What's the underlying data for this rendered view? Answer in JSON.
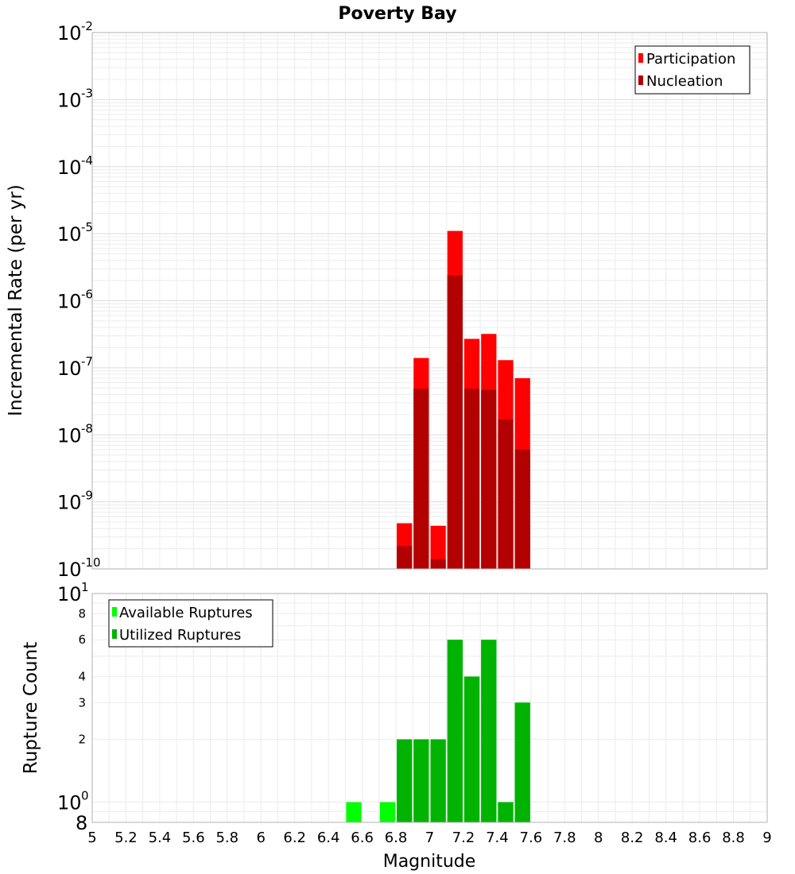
{
  "chart_data": [
    {
      "type": "bar",
      "title": "Poverty Bay",
      "xlabel": "",
      "ylabel": "Incremental Rate (per yr)",
      "xlim": [
        5,
        9
      ],
      "ylim": [
        1e-10,
        0.01
      ],
      "yscale": "log",
      "bin_width": 0.1,
      "grid": true,
      "legend_position": "top-right",
      "x": [
        6.85,
        6.95,
        7.05,
        7.15,
        7.25,
        7.35,
        7.45,
        7.55
      ],
      "series": [
        {
          "name": "Participation",
          "color": "#ff0000",
          "values": [
            4.8e-10,
            1.4e-07,
            4.4e-10,
            1.1e-05,
            2.7e-07,
            3.2e-07,
            1.3e-07,
            7e-08
          ]
        },
        {
          "name": "Nucleation",
          "color": "#b30000",
          "values": [
            2.2e-10,
            4.9e-08,
            1.4e-10,
            2.4e-06,
            4.9e-08,
            4.7e-08,
            1.7e-08,
            6e-09
          ]
        }
      ],
      "y_ticks": [
        {
          "base": "10",
          "exp": "-2"
        },
        {
          "base": "10",
          "exp": "-3"
        },
        {
          "base": "10",
          "exp": "-4"
        },
        {
          "base": "10",
          "exp": "-5"
        },
        {
          "base": "10",
          "exp": "-6"
        },
        {
          "base": "10",
          "exp": "-7"
        },
        {
          "base": "10",
          "exp": "-8"
        },
        {
          "base": "10",
          "exp": "-9"
        },
        {
          "base": "10",
          "exp": "-10"
        }
      ]
    },
    {
      "type": "bar",
      "title": "",
      "xlabel": "Magnitude",
      "ylabel": "Rupture Count",
      "xlim": [
        5,
        9
      ],
      "ylim": [
        0.8,
        10
      ],
      "yscale": "log",
      "bin_width": 0.1,
      "grid": true,
      "legend_position": "top-left",
      "x": [
        6.55,
        6.75,
        6.85,
        6.95,
        7.05,
        7.15,
        7.25,
        7.35,
        7.45,
        7.55
      ],
      "series": [
        {
          "name": "Available Ruptures",
          "color": "#00ff00",
          "values": [
            1,
            1,
            2,
            2,
            2,
            6,
            4,
            6,
            1,
            3
          ]
        },
        {
          "name": "Utilized Ruptures",
          "color": "#00b300",
          "values": [
            0,
            0,
            2,
            2,
            2,
            6,
            4,
            6,
            1,
            3
          ]
        }
      ],
      "y_ticks_major": [
        {
          "value": 10,
          "base": "10",
          "exp": "1"
        },
        {
          "value": 1,
          "base": "10",
          "exp": "0"
        },
        {
          "value": 0.8,
          "base": "8",
          "exp": ""
        }
      ],
      "y_ticks_minor": [
        {
          "value": 8,
          "label": "8"
        },
        {
          "value": 6,
          "label": "6"
        },
        {
          "value": 4,
          "label": "4"
        },
        {
          "value": 3,
          "label": "3"
        },
        {
          "value": 2,
          "label": "2"
        }
      ],
      "x_ticks": [
        "5",
        "5.2",
        "5.4",
        "5.6",
        "5.8",
        "6",
        "6.2",
        "6.4",
        "6.6",
        "6.8",
        "7",
        "7.2",
        "7.4",
        "7.6",
        "7.8",
        "8",
        "8.2",
        "8.4",
        "8.6",
        "8.8",
        "9"
      ]
    }
  ]
}
